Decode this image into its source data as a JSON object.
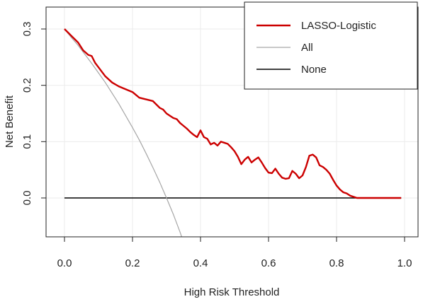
{
  "chart_data": {
    "type": "line",
    "title": "",
    "xlabel": "High Risk Threshold",
    "ylabel": "Net Benefit",
    "xlim": [
      0,
      1
    ],
    "ylim": [
      -0.065,
      0.325
    ],
    "x_ticks": [
      {
        "value": 0.0,
        "label": "0.0"
      },
      {
        "value": 0.2,
        "label": "0.2"
      },
      {
        "value": 0.4,
        "label": "0.4"
      },
      {
        "value": 0.6,
        "label": "0.6"
      },
      {
        "value": 0.8,
        "label": "0.8"
      },
      {
        "value": 1.0,
        "label": "1.0"
      }
    ],
    "y_ticks": [
      {
        "value": 0.0,
        "label": "0.0"
      },
      {
        "value": 0.1,
        "label": "0.1"
      },
      {
        "value": 0.2,
        "label": "0.2"
      },
      {
        "value": 0.3,
        "label": "0.3"
      }
    ],
    "grid": true,
    "legend_position": "top-right",
    "series": [
      {
        "name": "LASSO-Logistic",
        "color": "#cc0000",
        "points": [
          [
            0.0,
            0.3
          ],
          [
            0.02,
            0.288
          ],
          [
            0.04,
            0.276
          ],
          [
            0.055,
            0.262
          ],
          [
            0.07,
            0.254
          ],
          [
            0.08,
            0.252
          ],
          [
            0.09,
            0.24
          ],
          [
            0.1,
            0.232
          ],
          [
            0.12,
            0.216
          ],
          [
            0.14,
            0.205
          ],
          [
            0.16,
            0.198
          ],
          [
            0.18,
            0.193
          ],
          [
            0.2,
            0.188
          ],
          [
            0.22,
            0.178
          ],
          [
            0.24,
            0.175
          ],
          [
            0.26,
            0.172
          ],
          [
            0.28,
            0.16
          ],
          [
            0.29,
            0.157
          ],
          [
            0.3,
            0.15
          ],
          [
            0.31,
            0.146
          ],
          [
            0.32,
            0.142
          ],
          [
            0.33,
            0.14
          ],
          [
            0.34,
            0.133
          ],
          [
            0.36,
            0.123
          ],
          [
            0.37,
            0.117
          ],
          [
            0.38,
            0.112
          ],
          [
            0.39,
            0.108
          ],
          [
            0.4,
            0.12
          ],
          [
            0.41,
            0.108
          ],
          [
            0.42,
            0.105
          ],
          [
            0.43,
            0.095
          ],
          [
            0.44,
            0.098
          ],
          [
            0.45,
            0.093
          ],
          [
            0.46,
            0.1
          ],
          [
            0.47,
            0.098
          ],
          [
            0.48,
            0.096
          ],
          [
            0.49,
            0.09
          ],
          [
            0.5,
            0.083
          ],
          [
            0.51,
            0.073
          ],
          [
            0.52,
            0.06
          ],
          [
            0.53,
            0.068
          ],
          [
            0.54,
            0.073
          ],
          [
            0.55,
            0.063
          ],
          [
            0.56,
            0.068
          ],
          [
            0.57,
            0.072
          ],
          [
            0.58,
            0.063
          ],
          [
            0.59,
            0.053
          ],
          [
            0.6,
            0.045
          ],
          [
            0.61,
            0.044
          ],
          [
            0.62,
            0.052
          ],
          [
            0.63,
            0.043
          ],
          [
            0.64,
            0.036
          ],
          [
            0.65,
            0.034
          ],
          [
            0.66,
            0.035
          ],
          [
            0.67,
            0.048
          ],
          [
            0.68,
            0.043
          ],
          [
            0.69,
            0.035
          ],
          [
            0.7,
            0.04
          ],
          [
            0.71,
            0.055
          ],
          [
            0.72,
            0.075
          ],
          [
            0.73,
            0.077
          ],
          [
            0.74,
            0.072
          ],
          [
            0.75,
            0.058
          ],
          [
            0.76,
            0.055
          ],
          [
            0.77,
            0.05
          ],
          [
            0.78,
            0.043
          ],
          [
            0.79,
            0.032
          ],
          [
            0.8,
            0.022
          ],
          [
            0.81,
            0.015
          ],
          [
            0.82,
            0.01
          ],
          [
            0.83,
            0.008
          ],
          [
            0.84,
            0.004
          ],
          [
            0.85,
            0.002
          ],
          [
            0.86,
            0.0
          ],
          [
            0.9,
            0.0
          ],
          [
            0.95,
            0.0
          ],
          [
            0.99,
            0.0
          ]
        ]
      },
      {
        "name": "All",
        "color": "#a6a6a6",
        "points": [
          [
            0.0,
            0.3
          ],
          [
            0.02,
            0.285
          ],
          [
            0.04,
            0.271
          ],
          [
            0.06,
            0.255
          ],
          [
            0.08,
            0.239
          ],
          [
            0.1,
            0.222
          ],
          [
            0.12,
            0.205
          ],
          [
            0.14,
            0.186
          ],
          [
            0.16,
            0.167
          ],
          [
            0.18,
            0.146
          ],
          [
            0.2,
            0.125
          ],
          [
            0.22,
            0.103
          ],
          [
            0.24,
            0.079
          ],
          [
            0.26,
            0.054
          ],
          [
            0.28,
            0.028
          ],
          [
            0.3,
            0.0
          ],
          [
            0.32,
            -0.029
          ],
          [
            0.34,
            -0.061
          ],
          [
            0.348,
            -0.075
          ]
        ]
      },
      {
        "name": "None",
        "color": "#000000",
        "points": [
          [
            0.0,
            0.0
          ],
          [
            0.99,
            0.0
          ]
        ]
      }
    ]
  }
}
